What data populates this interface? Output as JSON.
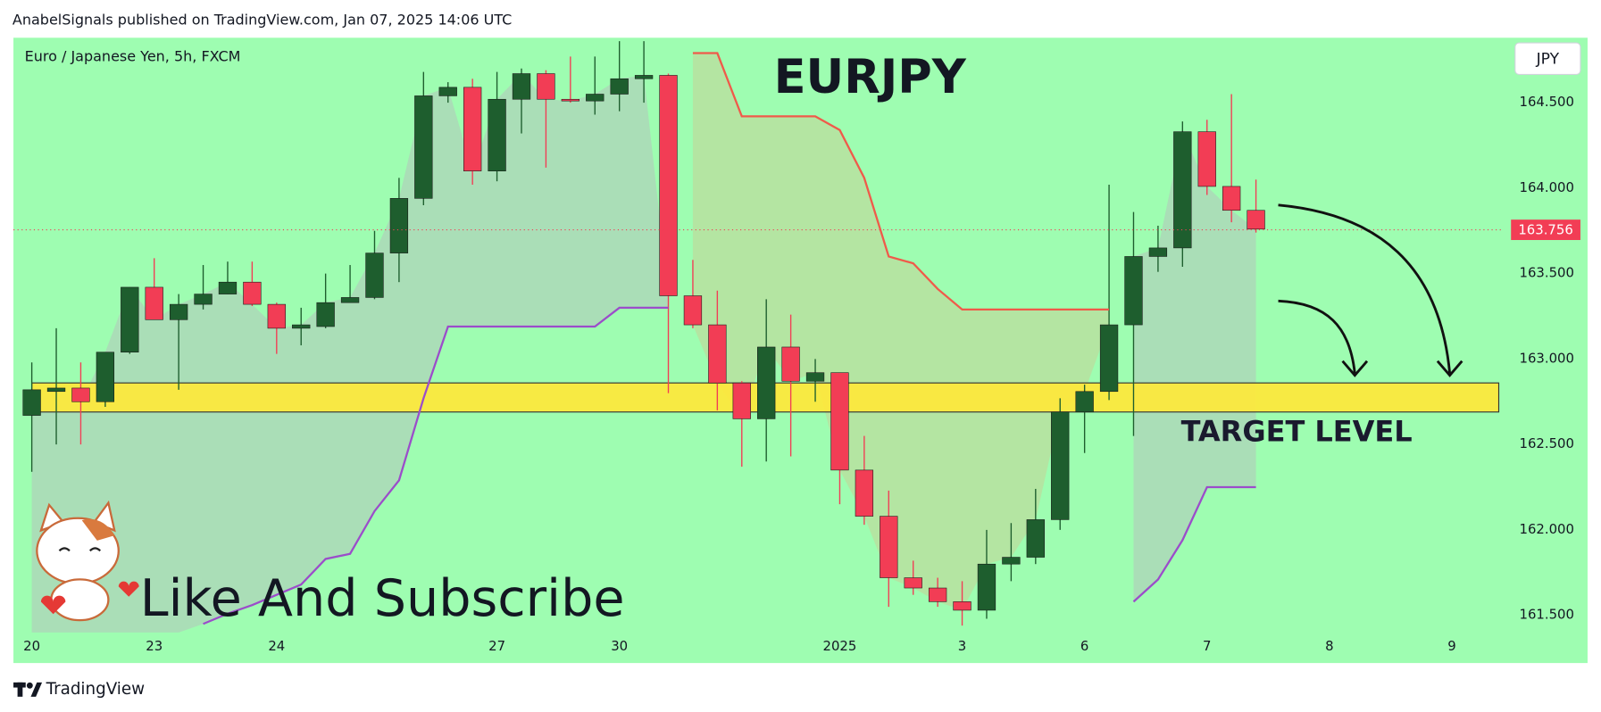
{
  "chart_data": {
    "type": "candlestick",
    "publisher": "AnabelSignals published on TradingView.com, Jan 07, 2025 14:06 UTC",
    "subtitle": "Euro / Japanese Yen, 5h, FXCM",
    "title": "EURJPY",
    "currency": "JPY",
    "annotation": "Like And Subscribe",
    "brand": "TradingView",
    "up_color": "#1e5e2e",
    "down_color": "#f23d55",
    "x": [
      0,
      1,
      2,
      3,
      4,
      5,
      6,
      7,
      8,
      9,
      10,
      11,
      12,
      13,
      14,
      15,
      16,
      17,
      18,
      19,
      20,
      21,
      22,
      23,
      24,
      25,
      26,
      27,
      28,
      29,
      30,
      31,
      32,
      33,
      34,
      35,
      36,
      37,
      38,
      39,
      40,
      41,
      42,
      43,
      44,
      45,
      46,
      47,
      48,
      49,
      50
    ],
    "open": [
      162.67,
      162.81,
      162.83,
      162.75,
      163.04,
      163.42,
      163.23,
      163.32,
      163.38,
      163.45,
      163.32,
      163.18,
      163.19,
      163.33,
      163.36,
      163.62,
      163.94,
      164.54,
      164.59,
      164.1,
      164.52,
      164.67,
      164.52,
      164.51,
      164.55,
      164.64,
      164.66,
      163.37,
      163.2,
      162.86,
      162.65,
      163.07,
      162.87,
      162.92,
      162.35,
      162.08,
      161.72,
      161.66,
      161.58,
      161.53,
      161.8,
      161.84,
      162.06,
      162.69,
      162.81,
      163.2,
      163.6,
      163.65,
      164.33,
      164.01,
      163.87
    ],
    "high": [
      162.98,
      163.18,
      162.98,
      163.04,
      163.42,
      163.59,
      163.38,
      163.55,
      163.57,
      163.57,
      163.33,
      163.3,
      163.5,
      163.55,
      163.75,
      164.06,
      164.68,
      164.62,
      164.64,
      164.68,
      164.7,
      164.69,
      164.77,
      164.77,
      164.86,
      164.86,
      164.67,
      163.58,
      163.4,
      162.87,
      163.35,
      163.26,
      163.0,
      162.92,
      162.55,
      162.23,
      161.82,
      161.72,
      161.7,
      162.0,
      162.04,
      162.24,
      162.77,
      162.85,
      164.02,
      163.86,
      163.78,
      164.39,
      164.4,
      164.55,
      164.05
    ],
    "low": [
      162.34,
      162.5,
      162.5,
      162.72,
      163.03,
      163.23,
      162.82,
      163.29,
      163.38,
      163.31,
      163.03,
      163.08,
      163.18,
      163.33,
      163.35,
      163.45,
      163.9,
      164.5,
      164.02,
      164.04,
      164.32,
      164.12,
      164.5,
      164.43,
      164.45,
      164.5,
      162.8,
      163.18,
      162.7,
      162.37,
      162.4,
      162.43,
      162.75,
      162.15,
      162.03,
      161.55,
      161.62,
      161.55,
      161.44,
      161.48,
      161.7,
      161.8,
      162.0,
      162.45,
      162.76,
      162.55,
      163.51,
      163.54,
      163.96,
      163.8,
      163.74
    ],
    "close": [
      162.82,
      162.83,
      162.75,
      163.04,
      163.42,
      163.23,
      163.32,
      163.38,
      163.45,
      163.32,
      163.18,
      163.2,
      163.33,
      163.36,
      163.62,
      163.94,
      164.54,
      164.59,
      164.1,
      164.52,
      164.67,
      164.52,
      164.51,
      164.55,
      164.64,
      164.66,
      163.37,
      163.2,
      162.86,
      162.65,
      163.07,
      162.87,
      162.92,
      162.35,
      162.08,
      161.72,
      161.66,
      161.58,
      161.53,
      161.8,
      161.84,
      162.06,
      162.69,
      162.81,
      163.2,
      163.6,
      163.65,
      164.33,
      164.01,
      163.87,
      163.76
    ],
    "lines": [
      {
        "color": "#f05a4a",
        "values": [
          null,
          null,
          null,
          null,
          null,
          null,
          null,
          null,
          null,
          null,
          null,
          null,
          null,
          null,
          null,
          null,
          null,
          null,
          null,
          null,
          null,
          null,
          null,
          null,
          null,
          null,
          null,
          164.79,
          164.79,
          164.42,
          164.42,
          164.42,
          164.42,
          164.34,
          164.06,
          163.6,
          163.56,
          163.41,
          163.29,
          163.29,
          163.29,
          163.29,
          163.29,
          163.29,
          163.29,
          null,
          null,
          null,
          null,
          null,
          null
        ]
      },
      {
        "color": "#9b4dca",
        "values": [
          null,
          null,
          null,
          null,
          null,
          null,
          null,
          161.45,
          161.51,
          161.56,
          161.62,
          161.68,
          161.83,
          161.86,
          162.11,
          162.29,
          162.77,
          163.19,
          163.19,
          163.19,
          163.19,
          163.19,
          163.19,
          163.19,
          163.3,
          163.3,
          163.3,
          null,
          null,
          null,
          null,
          null,
          null,
          null,
          null,
          null,
          null,
          null,
          null,
          null,
          null,
          null,
          null,
          null,
          null,
          161.58,
          161.71,
          161.94,
          162.25,
          162.25,
          162.25
        ]
      }
    ],
    "target_zone": {
      "low": 162.69,
      "high": 162.86,
      "label": "TARGET LEVEL",
      "color": "#ffe83a"
    },
    "last_price": 163.756,
    "xlim": [
      -0.75,
      60
    ],
    "xticks": [
      {
        "value": 0,
        "label": "20"
      },
      {
        "value": 5,
        "label": "23"
      },
      {
        "value": 10,
        "label": "24"
      },
      {
        "value": 19,
        "label": "27"
      },
      {
        "value": 24,
        "label": "30"
      },
      {
        "value": 33,
        "label": "2025"
      },
      {
        "value": 38,
        "label": "3"
      },
      {
        "value": 43,
        "label": "6"
      },
      {
        "value": 48,
        "label": "7"
      },
      {
        "value": 53,
        "label": "8"
      },
      {
        "value": 58,
        "label": "9"
      }
    ],
    "ylim": [
      161.4,
      164.88
    ],
    "yticks": [
      {
        "value": 161.5,
        "label": "161.500"
      },
      {
        "value": 162,
        "label": "162.000"
      },
      {
        "value": 162.5,
        "label": "162.500"
      },
      {
        "value": 163,
        "label": "163.000"
      },
      {
        "value": 163.5,
        "label": "163.500"
      },
      {
        "value": 164,
        "label": "164.000"
      },
      {
        "value": 164.5,
        "label": "164.500"
      }
    ]
  }
}
